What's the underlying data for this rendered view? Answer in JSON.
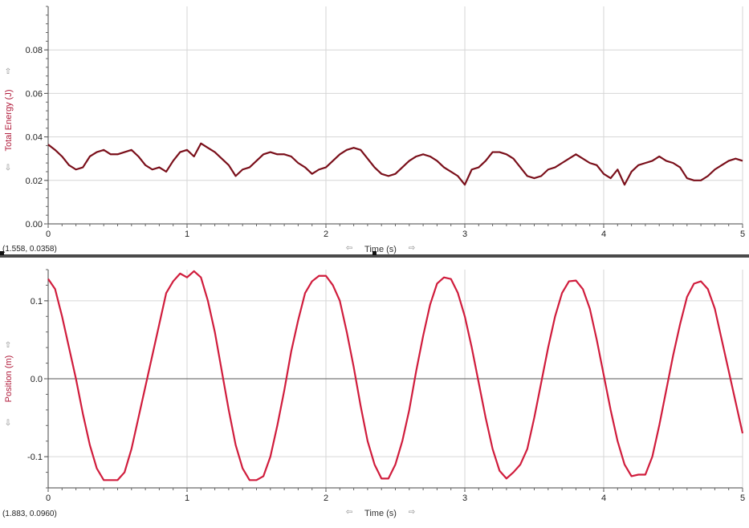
{
  "chart_data": [
    {
      "type": "line",
      "xlabel": "Time (s)",
      "ylabel": "Total Energy (J)",
      "xlim": [
        0,
        5
      ],
      "ylim": [
        0,
        0.1
      ],
      "xticks": [
        0,
        1,
        2,
        3,
        4,
        5
      ],
      "yticks": [
        0.0,
        0.02,
        0.04,
        0.06,
        0.08
      ],
      "ytick_labels": [
        "0.00",
        "0.02",
        "0.04",
        "0.06",
        "0.08"
      ],
      "grid": true,
      "readout": "(1.558, 0.0358)",
      "color": "#7a0f1a",
      "series": [
        {
          "x": [
            0.0,
            0.05,
            0.1,
            0.15,
            0.2,
            0.25,
            0.3,
            0.35,
            0.4,
            0.45,
            0.5,
            0.55,
            0.6,
            0.65,
            0.7,
            0.75,
            0.8,
            0.85,
            0.9,
            0.95,
            1.0,
            1.05,
            1.1,
            1.15,
            1.2,
            1.25,
            1.3,
            1.35,
            1.4,
            1.45,
            1.5,
            1.55,
            1.6,
            1.65,
            1.7,
            1.75,
            1.8,
            1.85,
            1.9,
            1.95,
            2.0,
            2.05,
            2.1,
            2.15,
            2.2,
            2.25,
            2.3,
            2.35,
            2.4,
            2.45,
            2.5,
            2.55,
            2.6,
            2.65,
            2.7,
            2.75,
            2.8,
            2.85,
            2.9,
            2.95,
            3.0,
            3.05,
            3.1,
            3.15,
            3.2,
            3.25,
            3.3,
            3.35,
            3.4,
            3.45,
            3.5,
            3.55,
            3.6,
            3.65,
            3.7,
            3.75,
            3.8,
            3.85,
            3.9,
            3.95,
            4.0,
            4.05,
            4.1,
            4.15,
            4.2,
            4.25,
            4.3,
            4.35,
            4.4,
            4.45,
            4.5,
            4.55,
            4.6,
            4.65,
            4.7,
            4.75,
            4.8,
            4.85,
            4.9,
            4.95,
            5.0
          ],
          "values": [
            0.0365,
            0.034,
            0.031,
            0.027,
            0.025,
            0.026,
            0.031,
            0.033,
            0.034,
            0.032,
            0.032,
            0.033,
            0.034,
            0.031,
            0.027,
            0.025,
            0.026,
            0.024,
            0.029,
            0.033,
            0.034,
            0.031,
            0.037,
            0.035,
            0.033,
            0.03,
            0.027,
            0.022,
            0.025,
            0.026,
            0.029,
            0.032,
            0.033,
            0.032,
            0.032,
            0.031,
            0.028,
            0.026,
            0.023,
            0.025,
            0.026,
            0.029,
            0.032,
            0.034,
            0.035,
            0.034,
            0.03,
            0.026,
            0.023,
            0.022,
            0.023,
            0.026,
            0.029,
            0.031,
            0.032,
            0.031,
            0.029,
            0.026,
            0.024,
            0.022,
            0.018,
            0.025,
            0.026,
            0.029,
            0.033,
            0.033,
            0.032,
            0.03,
            0.026,
            0.022,
            0.021,
            0.022,
            0.025,
            0.026,
            0.028,
            0.03,
            0.032,
            0.03,
            0.028,
            0.027,
            0.023,
            0.021,
            0.025,
            0.018,
            0.024,
            0.027,
            0.028,
            0.029,
            0.031,
            0.029,
            0.028,
            0.026,
            0.021,
            0.02,
            0.02,
            0.022,
            0.025,
            0.027,
            0.029,
            0.03,
            0.029
          ]
        }
      ]
    },
    {
      "type": "line",
      "xlabel": "Time (s)",
      "ylabel": "Position (m)",
      "xlim": [
        0,
        5
      ],
      "ylim": [
        -0.14,
        0.14
      ],
      "xticks": [
        0,
        1,
        2,
        3,
        4,
        5
      ],
      "yticks": [
        0.1,
        0.0,
        -0.1
      ],
      "ytick_labels": [
        "0.1",
        "0.0",
        "-0.1"
      ],
      "grid": true,
      "readout": "(1.883, 0.0960)",
      "color": "#d01c3c",
      "series": [
        {
          "x": [
            0.0,
            0.05,
            0.1,
            0.15,
            0.2,
            0.25,
            0.3,
            0.35,
            0.4,
            0.45,
            0.5,
            0.55,
            0.6,
            0.65,
            0.7,
            0.75,
            0.8,
            0.85,
            0.9,
            0.95,
            1.0,
            1.05,
            1.1,
            1.15,
            1.2,
            1.25,
            1.3,
            1.35,
            1.4,
            1.45,
            1.5,
            1.55,
            1.6,
            1.65,
            1.7,
            1.75,
            1.8,
            1.85,
            1.9,
            1.95,
            2.0,
            2.05,
            2.1,
            2.15,
            2.2,
            2.25,
            2.3,
            2.35,
            2.4,
            2.45,
            2.5,
            2.55,
            2.6,
            2.65,
            2.7,
            2.75,
            2.8,
            2.85,
            2.9,
            2.95,
            3.0,
            3.05,
            3.1,
            3.15,
            3.2,
            3.25,
            3.3,
            3.35,
            3.4,
            3.45,
            3.5,
            3.55,
            3.6,
            3.65,
            3.7,
            3.75,
            3.8,
            3.85,
            3.9,
            3.95,
            4.0,
            4.05,
            4.1,
            4.15,
            4.2,
            4.25,
            4.3,
            4.35,
            4.4,
            4.45,
            4.5,
            4.55,
            4.6,
            4.65,
            4.7,
            4.75,
            4.8,
            4.85,
            4.9,
            4.95,
            5.0
          ],
          "values": [
            0.128,
            0.115,
            0.08,
            0.04,
            0.0,
            -0.045,
            -0.085,
            -0.115,
            -0.13,
            -0.13,
            -0.13,
            -0.12,
            -0.09,
            -0.05,
            -0.01,
            0.03,
            0.07,
            0.11,
            0.125,
            0.135,
            0.13,
            0.138,
            0.13,
            0.1,
            0.06,
            0.01,
            -0.04,
            -0.085,
            -0.115,
            -0.13,
            -0.13,
            -0.125,
            -0.1,
            -0.06,
            -0.015,
            0.035,
            0.075,
            0.11,
            0.125,
            0.132,
            0.132,
            0.12,
            0.1,
            0.06,
            0.015,
            -0.035,
            -0.08,
            -0.11,
            -0.128,
            -0.128,
            -0.11,
            -0.08,
            -0.04,
            0.01,
            0.055,
            0.095,
            0.122,
            0.13,
            0.128,
            0.11,
            0.08,
            0.04,
            -0.005,
            -0.05,
            -0.09,
            -0.118,
            -0.128,
            -0.12,
            -0.11,
            -0.09,
            -0.05,
            -0.005,
            0.04,
            0.08,
            0.11,
            0.125,
            0.126,
            0.115,
            0.09,
            0.05,
            0.005,
            -0.04,
            -0.08,
            -0.11,
            -0.125,
            -0.123,
            -0.123,
            -0.1,
            -0.06,
            -0.015,
            0.03,
            0.07,
            0.105,
            0.122,
            0.125,
            0.115,
            0.09,
            0.05,
            0.01,
            -0.03,
            -0.07
          ]
        }
      ]
    }
  ]
}
